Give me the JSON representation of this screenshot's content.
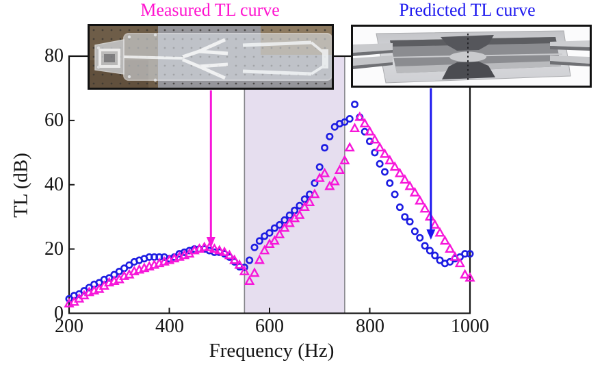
{
  "figure": {
    "titles": {
      "measured": "Measured TL curve",
      "predicted": "Predicted TL curve"
    },
    "colors": {
      "measured_title": "#ff14cf",
      "predicted_title": "#1b16ef",
      "measured_marker": "#f716d9",
      "predicted_marker": "#1c1ce2",
      "band_fill": "#e6deef",
      "band_edge": "#85858a",
      "axis": "#141414"
    },
    "insets": {
      "measured_photo": "fabricated-acrylic-specimen-photo",
      "predicted_model": "simulated-cad-model-render"
    }
  },
  "chart_data": {
    "type": "scatter",
    "title": "",
    "xlabel": "Frequency (Hz)",
    "ylabel": "TL (dB)",
    "xlim": [
      200,
      1000
    ],
    "ylim": [
      0,
      80
    ],
    "x_ticks": [
      200,
      400,
      600,
      800,
      1000
    ],
    "y_ticks": [
      0,
      20,
      40,
      60,
      80
    ],
    "x_tick_labels": [
      "200",
      "400",
      "600",
      "800",
      "1000"
    ],
    "y_tick_labels": [
      "0",
      "20",
      "40",
      "60",
      "80"
    ],
    "grid": false,
    "legend_position": "titles-above-plot",
    "highlight_band": {
      "from_hz": 550,
      "to_hz": 750
    },
    "x_start_hz": 200,
    "x_step_hz": 10,
    "series": [
      {
        "name": "Predicted TL curve",
        "marker": "circle",
        "color": "#1c1ce2",
        "values": [
          4.5,
          5.5,
          6,
          7,
          8,
          9,
          9.5,
          10.5,
          11,
          12,
          13,
          14,
          15,
          16,
          16.5,
          17,
          17.5,
          17.5,
          17.5,
          17.5,
          17,
          17.5,
          18.5,
          19,
          19.5,
          20,
          20,
          20,
          19.5,
          19,
          19,
          18.5,
          17.5,
          16,
          14.5,
          14.3,
          16.5,
          20.5,
          22.5,
          24,
          25,
          26.5,
          27.5,
          29,
          30.5,
          32,
          33.5,
          35.5,
          37,
          40.5,
          45.5,
          51.5,
          55,
          58,
          59,
          59.5,
          60.5,
          65,
          61,
          56.5,
          53.5,
          50,
          46.5,
          44,
          40.5,
          37,
          33,
          30,
          28.5,
          25.5,
          23.5,
          21,
          19.5,
          18,
          16.5,
          15.5,
          16,
          17,
          17.5,
          18.5,
          18.5
        ]
      },
      {
        "name": "Measured TL curve",
        "marker": "triangle",
        "color": "#f716d9",
        "values": [
          3,
          3.5,
          4.5,
          5.5,
          6.5,
          7,
          7.5,
          8.5,
          9.5,
          10,
          10.5,
          11.5,
          12,
          13,
          13.5,
          14,
          14.5,
          15,
          15.5,
          16,
          16.5,
          17,
          17.5,
          18,
          18.5,
          19.5,
          20,
          20.5,
          20.5,
          20,
          19.5,
          19,
          18,
          16.5,
          15,
          13,
          10,
          12.5,
          16.5,
          19.5,
          21.5,
          22.5,
          24.5,
          26.5,
          28,
          29.5,
          30.5,
          33,
          34.5,
          37,
          42,
          43.5,
          39.5,
          41,
          44.5,
          47.5,
          51.5,
          57.5,
          61,
          59,
          56.5,
          54,
          51.5,
          49.5,
          47.5,
          45.5,
          43.5,
          41.5,
          39.5,
          37.5,
          35,
          32.5,
          30,
          27.5,
          25,
          22.5,
          20,
          17.5,
          15.5,
          12,
          11
        ]
      }
    ],
    "annotations": [
      {
        "name": "measured-arrow",
        "x_hz": 483,
        "color": "#f716d9",
        "points_from": "measured-specimen-photo"
      },
      {
        "name": "predicted-arrow",
        "x_hz": 922,
        "color": "#1b16ef",
        "points_from": "predicted-model-render"
      }
    ]
  }
}
